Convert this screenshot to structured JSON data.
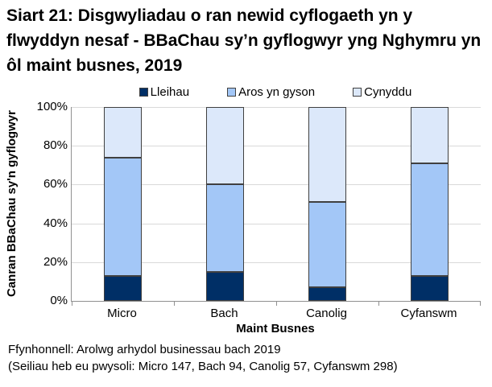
{
  "title": "Siart 21: Disgwyliadau o ran newid cyflogaeth yn y flwyddyn nesaf - BBaChau sy’n gyflogwyr yng Nghymru yn ôl maint busnes, 2019",
  "footer": {
    "line1": "Ffynhonnell: Arolwg arhydol businessau bach 2019",
    "line2": "(Seiliau heb eu pwysoli: Micro 147, Bach 94, Canolig 57, Cyfanswm 298)"
  },
  "chart_data": {
    "type": "bar",
    "stacked": true,
    "orientation": "vertical",
    "title": "Siart 21: Disgwyliadau o ran newid cyflogaeth yn y flwyddyn nesaf - BBaChau sy’n gyflogwyr yng Nghymru yn ôl maint busnes, 2019",
    "categories": [
      "Micro",
      "Bach",
      "Canolig",
      "Cyfanswm"
    ],
    "series": [
      {
        "name": "Lleihau",
        "color": "#002F66",
        "values": [
          13,
          15,
          7,
          13
        ]
      },
      {
        "name": "Aros yn gyson",
        "color": "#A3C7F7",
        "values": [
          61,
          45,
          44,
          58
        ]
      },
      {
        "name": "Cynyddu",
        "color": "#DCE8FA",
        "values": [
          26,
          40,
          49,
          29
        ]
      }
    ],
    "xlabel": "Maint Busnes",
    "ylabel": "Canran BBaChau sy'n gyflogwyr",
    "ylim": [
      0,
      100
    ],
    "yticks": [
      0,
      20,
      40,
      60,
      80,
      100
    ],
    "ytick_labels": [
      "0%",
      "20%",
      "40%",
      "60%",
      "80%",
      "100%"
    ],
    "legend_position": "top",
    "grid": true,
    "colors": {
      "grid": "#D9D9D9",
      "axis": "#909090",
      "bar_border": "#404040",
      "text": "#000000",
      "background": "#FFFFFF"
    }
  }
}
